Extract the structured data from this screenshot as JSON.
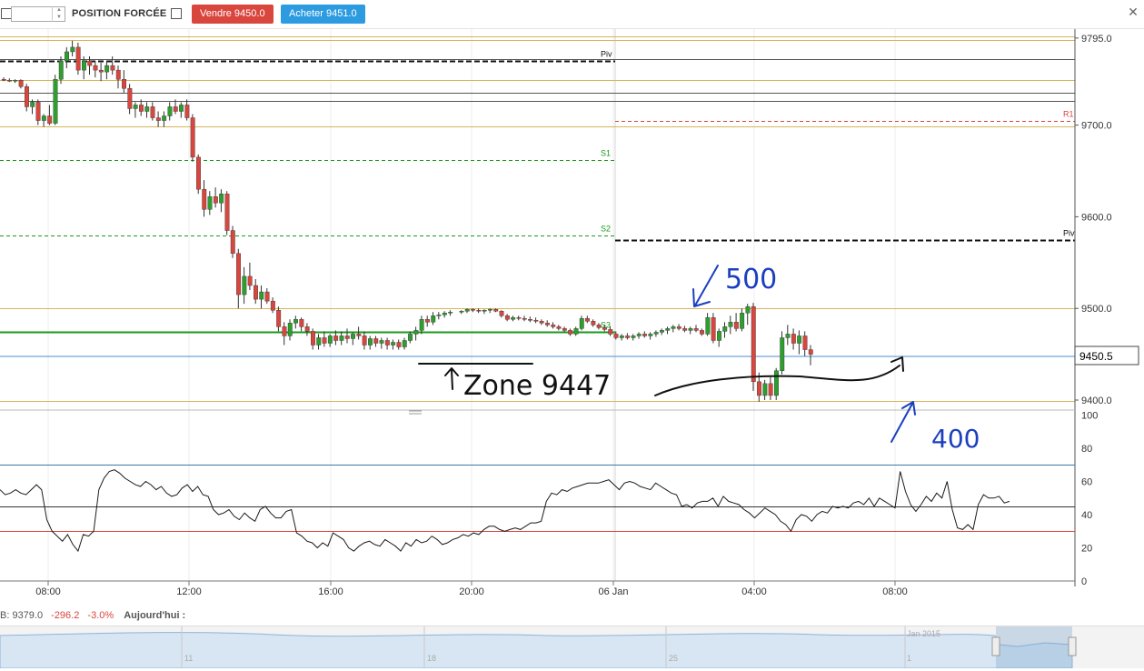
{
  "toolbar": {
    "quantity_value": "",
    "forced_position_label": "POSITION FORCÉE",
    "sell_button": "Vendre 9450.0",
    "buy_button": "Acheter 9451.0",
    "close_glyph": "✕"
  },
  "colors": {
    "bull": "#2e9e2e",
    "bear": "#d9463e",
    "support": "#1a9a1a",
    "resistance": "#d9463e",
    "pivot": "#111111",
    "fib_gold": "#d7b45a",
    "annotation_black": "#111111",
    "annotation_blue": "#1b3fbf",
    "last_price_line": "#4a8fd0"
  },
  "chart_data": [
    {
      "type": "candlestick",
      "y_ticks": [
        "9795.0",
        "9700.0",
        "9600.0",
        "9500.0",
        "9400.0"
      ],
      "ylim": [
        9390,
        9800
      ],
      "x_ticks": [
        "08:00",
        "12:00",
        "16:00",
        "20:00",
        "06 Jan",
        "04:00",
        "08:00"
      ],
      "last_price": "9450.5",
      "last_price_value": 9450.5,
      "pivot_levels": [
        {
          "label": "Piv",
          "value": 9770,
          "session": "previous",
          "color": "#111111",
          "style": "dashed"
        },
        {
          "label": "S1",
          "value": 9662,
          "session": "previous",
          "color": "#1a9a1a",
          "style": "dashed"
        },
        {
          "label": "S2",
          "value": 9580,
          "session": "previous",
          "color": "#1a9a1a",
          "style": "dashed"
        },
        {
          "label": "S3",
          "value": 9474,
          "session": "previous",
          "color": "#1a9a1a",
          "style": "solid"
        },
        {
          "label": "R1",
          "value": 9705,
          "session": "current",
          "color": "#d9463e",
          "style": "dashed"
        },
        {
          "label": "Piv",
          "value": 9575,
          "session": "current",
          "color": "#111111",
          "style": "dashed"
        }
      ],
      "horizontal_lines": [
        {
          "value": 9797,
          "color": "#d7b45a"
        },
        {
          "value": 9793,
          "color": "#d7b45a"
        },
        {
          "value": 9772,
          "color": "#555555"
        },
        {
          "value": 9749,
          "color": "#d7b45a"
        },
        {
          "value": 9735,
          "color": "#555555"
        },
        {
          "value": 9726,
          "color": "#555555"
        },
        {
          "value": 9699,
          "color": "#d7b45a"
        },
        {
          "value": 9500,
          "color": "#d7b45a"
        },
        {
          "value": 9399,
          "color": "#d7b45a"
        }
      ],
      "candles": [
        [
          9750,
          9752,
          9748,
          9749
        ],
        [
          9749,
          9751,
          9747,
          9748
        ],
        [
          9748,
          9750,
          9746,
          9749
        ],
        [
          9749,
          9750,
          9740,
          9742
        ],
        [
          9742,
          9745,
          9715,
          9720
        ],
        [
          9720,
          9728,
          9712,
          9725
        ],
        [
          9725,
          9728,
          9700,
          9705
        ],
        [
          9705,
          9712,
          9698,
          9710
        ],
        [
          9710,
          9722,
          9700,
          9702
        ],
        [
          9702,
          9755,
          9700,
          9750
        ],
        [
          9750,
          9775,
          9745,
          9770
        ],
        [
          9770,
          9785,
          9762,
          9780
        ],
        [
          9780,
          9792,
          9775,
          9785
        ],
        [
          9785,
          9790,
          9755,
          9760
        ],
        [
          9760,
          9775,
          9750,
          9770
        ],
        [
          9770,
          9775,
          9755,
          9765
        ],
        [
          9765,
          9770,
          9752,
          9760
        ],
        [
          9760,
          9768,
          9748,
          9758
        ],
        [
          9758,
          9770,
          9750,
          9765
        ],
        [
          9765,
          9775,
          9755,
          9760
        ],
        [
          9760,
          9765,
          9740,
          9750
        ],
        [
          9750,
          9760,
          9735,
          9740
        ],
        [
          9740,
          9745,
          9712,
          9718
        ],
        [
          9718,
          9725,
          9708,
          9722
        ],
        [
          9722,
          9728,
          9710,
          9715
        ],
        [
          9715,
          9725,
          9708,
          9720
        ],
        [
          9720,
          9725,
          9705,
          9708
        ],
        [
          9708,
          9715,
          9698,
          9705
        ],
        [
          9705,
          9715,
          9698,
          9710
        ],
        [
          9710,
          9725,
          9705,
          9720
        ],
        [
          9720,
          9728,
          9712,
          9715
        ],
        [
          9715,
          9725,
          9708,
          9722
        ],
        [
          9722,
          9728,
          9705,
          9708
        ],
        [
          9708,
          9712,
          9660,
          9665
        ],
        [
          9665,
          9668,
          9625,
          9630
        ],
        [
          9630,
          9640,
          9600,
          9608
        ],
        [
          9608,
          9628,
          9602,
          9622
        ],
        [
          9622,
          9632,
          9610,
          9615
        ],
        [
          9615,
          9630,
          9605,
          9625
        ],
        [
          9625,
          9628,
          9580,
          9585
        ],
        [
          9585,
          9590,
          9555,
          9560
        ],
        [
          9560,
          9565,
          9500,
          9515
        ],
        [
          9515,
          9545,
          9505,
          9535
        ],
        [
          9535,
          9550,
          9520,
          9525
        ],
        [
          9525,
          9532,
          9505,
          9510
        ],
        [
          9510,
          9525,
          9500,
          9518
        ],
        [
          9518,
          9522,
          9505,
          9508
        ],
        [
          9508,
          9512,
          9495,
          9498
        ],
        [
          9498,
          9502,
          9475,
          9480
        ],
        [
          9480,
          9485,
          9460,
          9470
        ],
        [
          9470,
          9488,
          9465,
          9484
        ],
        [
          9484,
          9492,
          9478,
          9488
        ],
        [
          9488,
          9490,
          9475,
          9480
        ],
        [
          9480,
          9484,
          9470,
          9475
        ],
        [
          9475,
          9478,
          9455,
          9460
        ],
        [
          9460,
          9472,
          9455,
          9468
        ],
        [
          9468,
          9475,
          9458,
          9462
        ],
        [
          9462,
          9472,
          9458,
          9470
        ],
        [
          9470,
          9476,
          9460,
          9465
        ],
        [
          9465,
          9475,
          9460,
          9470
        ],
        [
          9470,
          9478,
          9462,
          9467
        ],
        [
          9467,
          9474,
          9460,
          9472
        ],
        [
          9472,
          9480,
          9466,
          9470
        ],
        [
          9470,
          9475,
          9455,
          9460
        ],
        [
          9460,
          9470,
          9455,
          9467
        ],
        [
          9467,
          9470,
          9458,
          9462
        ],
        [
          9462,
          9468,
          9456,
          9465
        ],
        [
          9465,
          9468,
          9455,
          9460
        ],
        [
          9460,
          9466,
          9455,
          9463
        ],
        [
          9463,
          9466,
          9455,
          9458
        ],
        [
          9458,
          9468,
          9455,
          9465
        ],
        [
          9465,
          9475,
          9462,
          9472
        ],
        [
          9472,
          9480,
          9465,
          9476
        ],
        [
          9476,
          9492,
          9472,
          9488
        ],
        [
          9488,
          9492,
          9480,
          9485
        ],
        [
          9485,
          9496,
          9482,
          9492
        ],
        [
          9492,
          9496,
          9488,
          9493
        ],
        [
          9493,
          9497,
          9490,
          9495
        ],
        [
          9495,
          9498,
          9492,
          9496
        ],
        [
          9496,
          9498,
          9494,
          9497
        ],
        [
          9497,
          9500,
          9495,
          9499
        ],
        [
          9499,
          9500,
          9496,
          9498
        ],
        [
          9498,
          9500,
          9495,
          9497
        ],
        [
          9497,
          9499,
          9494,
          9498
        ],
        [
          9498,
          9500,
          9495,
          9499
        ],
        [
          9499,
          9500,
          9496,
          9497
        ],
        [
          9497,
          9498,
          9490,
          9492
        ],
        [
          9492,
          9494,
          9486,
          9488
        ],
        [
          9488,
          9492,
          9486,
          9490
        ],
        [
          9490,
          9492,
          9487,
          9489
        ],
        [
          9489,
          9492,
          9486,
          9488
        ],
        [
          9488,
          9491,
          9485,
          9487
        ],
        [
          9487,
          9490,
          9484,
          9486
        ],
        [
          9486,
          9488,
          9482,
          9484
        ],
        [
          9484,
          9487,
          9480,
          9482
        ],
        [
          9482,
          9485,
          9478,
          9480
        ],
        [
          9480,
          9482,
          9476,
          9478
        ],
        [
          9478,
          9480,
          9474,
          9476
        ],
        [
          9476,
          9478,
          9470,
          9472
        ],
        [
          9472,
          9480,
          9470,
          9478
        ],
        [
          9478,
          9492,
          9476,
          9489
        ],
        [
          9489,
          9492,
          9484,
          9486
        ],
        [
          9486,
          9488,
          9480,
          9482
        ],
        [
          9482,
          9484,
          9477,
          9479
        ],
        [
          9479,
          9482,
          9475,
          9477
        ],
        [
          9477,
          9480,
          9470,
          9472
        ],
        [
          9472,
          9475,
          9466,
          9468
        ],
        [
          9468,
          9472,
          9465,
          9470
        ],
        [
          9470,
          9473,
          9466,
          9468
        ],
        [
          9468,
          9472,
          9465,
          9470
        ],
        [
          9470,
          9474,
          9467,
          9472
        ],
        [
          9472,
          9475,
          9468,
          9470
        ],
        [
          9470,
          9474,
          9466,
          9472
        ],
        [
          9472,
          9476,
          9469,
          9474
        ],
        [
          9474,
          9478,
          9471,
          9476
        ],
        [
          9476,
          9480,
          9472,
          9478
        ],
        [
          9478,
          9482,
          9474,
          9480
        ],
        [
          9480,
          9483,
          9476,
          9478
        ],
        [
          9478,
          9481,
          9474,
          9476
        ],
        [
          9476,
          9480,
          9472,
          9478
        ],
        [
          9478,
          9482,
          9474,
          9476
        ],
        [
          9476,
          9478,
          9470,
          9472
        ],
        [
          9472,
          9495,
          9470,
          9490
        ],
        [
          9490,
          9495,
          9462,
          9465
        ],
        [
          9465,
          9478,
          9458,
          9475
        ],
        [
          9475,
          9485,
          9468,
          9480
        ],
        [
          9480,
          9492,
          9472,
          9485
        ],
        [
          9485,
          9495,
          9475,
          9478
        ],
        [
          9478,
          9500,
          9475,
          9495
        ],
        [
          9495,
          9505,
          9482,
          9502
        ],
        [
          9502,
          9506,
          9410,
          9420
        ],
        [
          9420,
          9430,
          9398,
          9405
        ],
        [
          9405,
          9422,
          9400,
          9418
        ],
        [
          9418,
          9425,
          9400,
          9405
        ],
        [
          9405,
          9435,
          9400,
          9432
        ],
        [
          9432,
          9475,
          9428,
          9468
        ],
        [
          9468,
          9482,
          9460,
          9472
        ],
        [
          9472,
          9478,
          9455,
          9462
        ],
        [
          9462,
          9476,
          9450,
          9470
        ],
        [
          9470,
          9475,
          9448,
          9455
        ],
        [
          9455,
          9460,
          9438,
          9450
        ]
      ]
    },
    {
      "type": "line",
      "name": "",
      "y_ticks": [
        "100",
        "80",
        "60",
        "40",
        "20",
        "0"
      ],
      "ylim": [
        0,
        100
      ],
      "levels": [
        70,
        45,
        30
      ],
      "values": [
        55,
        52,
        53,
        55,
        53,
        52,
        55,
        58,
        55,
        37,
        30,
        27,
        24,
        28,
        22,
        18,
        28,
        27,
        30,
        55,
        62,
        66,
        67,
        65,
        62,
        60,
        58,
        57,
        60,
        58,
        55,
        57,
        53,
        51,
        52,
        56,
        58,
        54,
        57,
        52,
        51,
        43,
        40,
        41,
        43,
        39,
        37,
        41,
        38,
        36,
        43,
        45,
        41,
        38,
        38,
        42,
        43,
        29,
        27,
        24,
        23,
        20,
        23,
        21,
        29,
        27,
        25,
        20,
        18,
        21,
        23,
        24,
        22,
        21,
        25,
        23,
        21,
        18,
        23,
        21,
        25,
        23,
        24,
        27,
        25,
        22,
        23,
        25,
        26,
        28,
        27,
        29,
        28,
        31,
        33,
        33,
        31,
        30,
        31,
        32,
        31,
        33,
        35,
        35,
        36,
        48,
        53,
        52,
        55,
        54,
        56,
        57,
        58,
        59,
        59,
        59,
        60,
        61,
        58,
        55,
        59,
        60,
        59,
        57,
        56,
        55,
        59,
        57,
        55,
        53,
        52,
        45,
        46,
        44,
        47,
        48,
        48,
        50,
        45,
        51,
        48,
        47,
        46,
        43,
        41,
        38,
        41,
        44,
        42,
        40,
        36,
        34,
        30,
        37,
        40,
        39,
        36,
        40,
        42,
        41,
        45,
        44,
        45,
        44,
        47,
        48,
        46,
        50,
        45,
        50,
        48,
        46,
        44,
        66,
        54,
        46,
        42,
        46,
        51,
        48,
        53,
        50,
        60,
        43,
        32,
        31,
        34,
        31,
        46,
        52,
        50,
        50,
        51,
        47,
        48
      ],
      "last_value": 48
    }
  ],
  "annotations": [
    {
      "text": "Zone 9447",
      "color": "black"
    },
    {
      "text": "500",
      "color": "blue"
    },
    {
      "text": "400",
      "color": "blue"
    }
  ],
  "bottom_bar": {
    "stats_prefix": "B: 9379.0",
    "change": "-296.2",
    "change_pct": "-3.0%",
    "period": "Aujourd'hui :"
  },
  "navigator": {
    "labels": [
      "11",
      "18",
      "25",
      "1",
      "Jan 2015"
    ]
  }
}
